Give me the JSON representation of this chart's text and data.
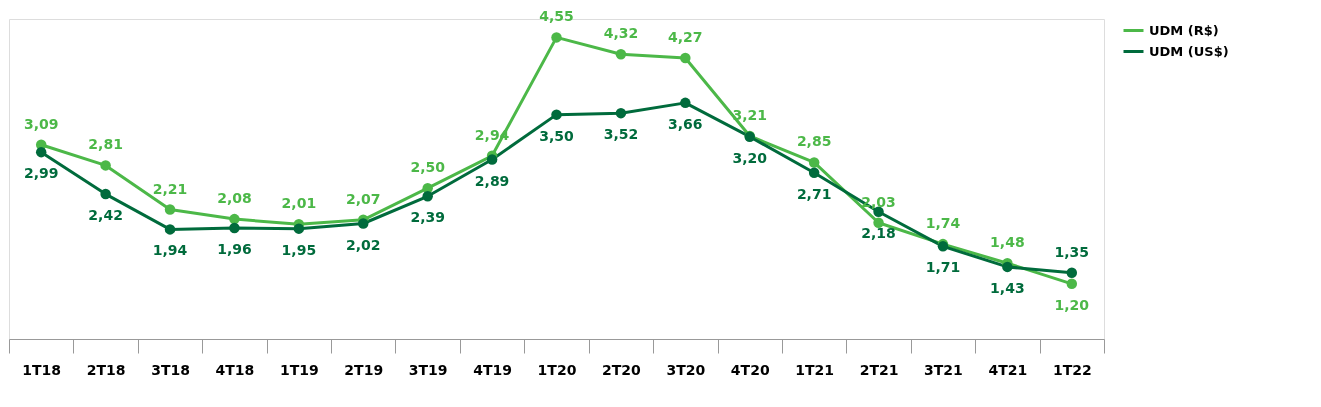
{
  "chart_data": {
    "type": "line",
    "categories": [
      "1T18",
      "2T18",
      "3T18",
      "4T18",
      "1T19",
      "2T19",
      "3T19",
      "4T19",
      "1T20",
      "2T20",
      "3T20",
      "4T20",
      "1T21",
      "2T21",
      "3T21",
      "4T21",
      "1T22"
    ],
    "series": [
      {
        "name": "UDM (R$)",
        "color": "#4cb848",
        "values": [
          3.09,
          2.81,
          2.21,
          2.08,
          2.01,
          2.07,
          2.5,
          2.94,
          4.55,
          4.32,
          4.27,
          3.21,
          2.85,
          2.03,
          1.74,
          1.48,
          1.2
        ],
        "value_labels": [
          "3,09",
          "2,81",
          "2,21",
          "2,08",
          "2,01",
          "2,07",
          "2,50",
          "2,94",
          "4,55",
          "4,32",
          "4,27",
          "3,21",
          "2,85",
          "2,03",
          "1,74",
          "1,48",
          "1,20"
        ]
      },
      {
        "name": "UDM (US$)",
        "color": "#006b3c",
        "values": [
          2.99,
          2.42,
          1.94,
          1.96,
          1.95,
          2.02,
          2.39,
          2.89,
          3.5,
          3.52,
          3.66,
          3.2,
          2.71,
          2.18,
          1.71,
          1.43,
          1.35
        ],
        "value_labels": [
          "2,99",
          "2,42",
          "1,94",
          "1,96",
          "1,95",
          "2,02",
          "2,39",
          "2,89",
          "3,50",
          "3,52",
          "3,66",
          "3,20",
          "2,71",
          "2,18",
          "1,71",
          "1,43",
          "1,35"
        ]
      }
    ],
    "legend": "right",
    "marker": "circle",
    "line_style": "solid",
    "grid": false
  }
}
